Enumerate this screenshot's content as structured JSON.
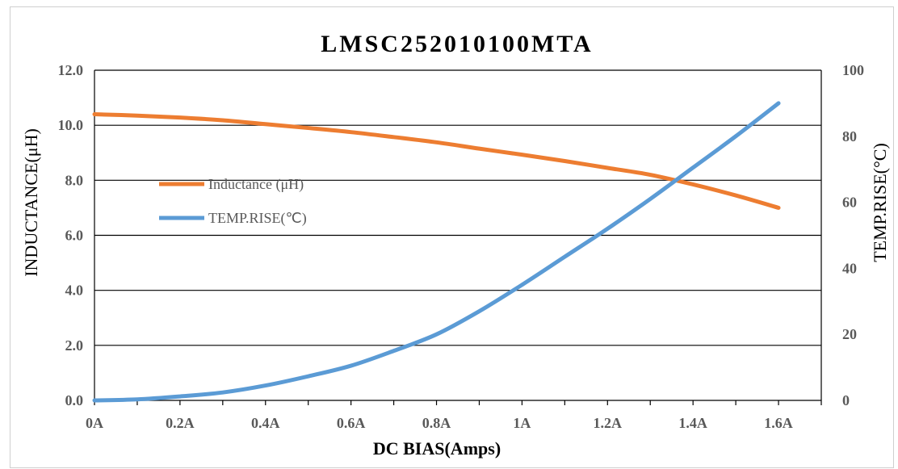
{
  "chart_data": {
    "type": "line",
    "title": "LMSC252010100MTA",
    "xlabel": "DC BIAS(Amps)",
    "ylabel": "INDUCTANCE(μH)",
    "y2label": "TEMP.RISE(°C)",
    "x": [
      0,
      0.1,
      0.2,
      0.3,
      0.4,
      0.5,
      0.6,
      0.7,
      0.8,
      0.9,
      1.0,
      1.1,
      1.2,
      1.3,
      1.4,
      1.5,
      1.6
    ],
    "x_tick_labels": [
      "0A",
      "0.2A",
      "0.4A",
      "0.6A",
      "0.8A",
      "1A",
      "1.2A",
      "1.4A",
      "1.6A"
    ],
    "x_tick_values": [
      0,
      0.2,
      0.4,
      0.6,
      0.8,
      1.0,
      1.2,
      1.4,
      1.6
    ],
    "xlim": [
      0,
      1.7
    ],
    "ylim": [
      0,
      12
    ],
    "y_ticks": [
      "0.0",
      "2.0",
      "4.0",
      "6.0",
      "8.0",
      "10.0",
      "12.0"
    ],
    "y2lim": [
      0,
      100
    ],
    "y2_ticks": [
      "0",
      "20",
      "40",
      "60",
      "80",
      "100"
    ],
    "grid": true,
    "legend_position": "center-left",
    "series": [
      {
        "name": "Inductance  (μH)",
        "axis": "left",
        "color": "#ED7D31",
        "values": [
          10.4,
          10.35,
          10.28,
          10.18,
          10.04,
          9.9,
          9.75,
          9.57,
          9.38,
          9.15,
          8.93,
          8.7,
          8.45,
          8.2,
          7.85,
          7.45,
          7.0
        ]
      },
      {
        "name": "TEMP.RISE(℃)",
        "axis": "right",
        "color": "#5B9BD5",
        "values": [
          0,
          0.3,
          1.2,
          2.4,
          4.5,
          7.3,
          10.5,
          15.0,
          20.0,
          27.0,
          35.0,
          43.5,
          52.0,
          61.0,
          70.5,
          80.0,
          90.0
        ]
      }
    ]
  }
}
